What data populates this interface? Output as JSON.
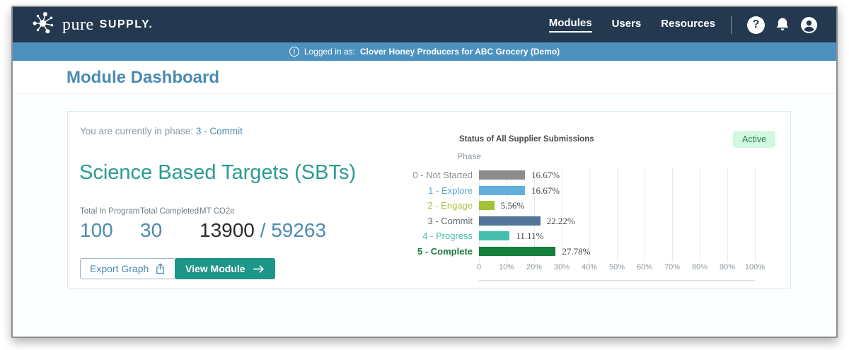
{
  "navbar": {
    "logo": {
      "pure": "pure",
      "supply": "SUPPLY."
    },
    "items": [
      {
        "label": "Modules",
        "active": true
      },
      {
        "label": "Users",
        "active": false
      },
      {
        "label": "Resources",
        "active": false
      }
    ],
    "icons": [
      "help-icon",
      "bell-icon",
      "account-icon"
    ],
    "help_glyph": "?"
  },
  "banner": {
    "info_glyph": "!",
    "prefix": "Logged in as:",
    "account": "Clover Honey Producers for ABC Grocery (Demo)"
  },
  "page": {
    "title": "Module Dashboard"
  },
  "card": {
    "phase_prefix": "You are currently in phase:",
    "phase_value": "3 - Commit",
    "title": "Science Based Targets (SBTs)",
    "stats": [
      {
        "label": "Total In Program",
        "value": "100"
      },
      {
        "label": "Total Completed",
        "value": "30"
      }
    ],
    "co2e": {
      "label": "MT CO2e",
      "current": "13900",
      "separator": " / ",
      "total": "59263"
    },
    "buttons": {
      "export": "Export Graph",
      "view": "View Module"
    },
    "status_badge": "Active",
    "accent_teal": "#2b9b90",
    "accent_blue": "#4a8bb0",
    "button_teal": "#1d9589",
    "badge_bg": "#d2f8e1"
  },
  "chart_data": {
    "type": "bar",
    "orientation": "horizontal",
    "title": "Status of All Supplier Submissions",
    "ylabel": "Phase",
    "categories": [
      "0 - Not Started",
      "1 - Explore",
      "2 - Engage",
      "3 - Commit",
      "4 - Progress",
      "5 - Complete"
    ],
    "values": [
      16.67,
      16.67,
      5.56,
      22.22,
      11.11,
      27.78
    ],
    "value_labels": [
      "16.67%",
      "16.67%",
      "5.56%",
      "22.22%",
      "11.11%",
      "27.78%"
    ],
    "bar_colors": [
      "#8c8c8c",
      "#62aedd",
      "#9fc236",
      "#50749a",
      "#46c0ac",
      "#157f3d"
    ],
    "label_colors": [
      "#8a8f94",
      "#5aa7d8",
      "#a9bf3a",
      "#5d6b79",
      "#3fc1ad",
      "#1d7a40"
    ],
    "label_bold": [
      false,
      false,
      false,
      false,
      false,
      true
    ],
    "x_ticks": [
      "0",
      "10%",
      "20%",
      "30%",
      "40%",
      "50%",
      "60%",
      "70%",
      "80%",
      "90%",
      "100%"
    ],
    "xlim": [
      0,
      100
    ],
    "grid": true,
    "gridline_color": "#ddeef1"
  }
}
